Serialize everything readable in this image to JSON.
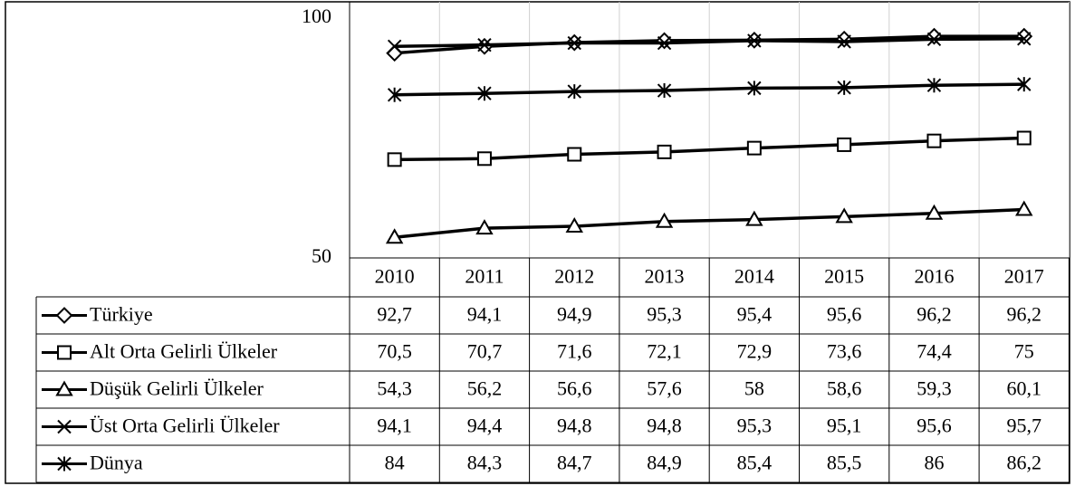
{
  "chart_data": {
    "type": "line",
    "categories": [
      "2010",
      "2011",
      "2012",
      "2013",
      "2014",
      "2015",
      "2016",
      "2017"
    ],
    "series": [
      {
        "name": "Türkiye",
        "color": "#000000",
        "marker": "diamond",
        "values": [
          92.7,
          94.1,
          94.9,
          95.3,
          95.4,
          95.6,
          96.2,
          96.2
        ],
        "value_labels": [
          "92,7",
          "94,1",
          "94,9",
          "95,3",
          "95,4",
          "95,6",
          "96,2",
          "96,2"
        ]
      },
      {
        "name": "Alt Orta Gelirli Ülkeler",
        "color": "#000000",
        "marker": "square",
        "values": [
          70.5,
          70.7,
          71.6,
          72.1,
          72.9,
          73.6,
          74.4,
          75
        ],
        "value_labels": [
          "70,5",
          "70,7",
          "71,6",
          "72,1",
          "72,9",
          "73,6",
          "74,4",
          "75"
        ]
      },
      {
        "name": "Düşük Gelirli Ülkeler",
        "color": "#000000",
        "marker": "triangle",
        "values": [
          54.3,
          56.2,
          56.6,
          57.6,
          58,
          58.6,
          59.3,
          60.1
        ],
        "value_labels": [
          "54,3",
          "56,2",
          "56,6",
          "57,6",
          "58",
          "58,6",
          "59,3",
          "60,1"
        ]
      },
      {
        "name": "Üst Orta Gelirli Ülkeler",
        "color": "#000000",
        "marker": "x",
        "values": [
          94.1,
          94.4,
          94.8,
          94.8,
          95.3,
          95.1,
          95.6,
          95.7
        ],
        "value_labels": [
          "94,1",
          "94,4",
          "94,8",
          "94,8",
          "95,3",
          "95,1",
          "95,6",
          "95,7"
        ]
      },
      {
        "name": "Dünya",
        "color": "#000000",
        "marker": "asterisk",
        "values": [
          84,
          84.3,
          84.7,
          84.9,
          85.4,
          85.5,
          86,
          86.2
        ],
        "value_labels": [
          "84",
          "84,3",
          "84,7",
          "84,9",
          "85,4",
          "85,5",
          "86",
          "86,2"
        ]
      }
    ],
    "ylim": [
      50,
      100
    ],
    "yticks": [
      50,
      100
    ],
    "grid": true
  }
}
